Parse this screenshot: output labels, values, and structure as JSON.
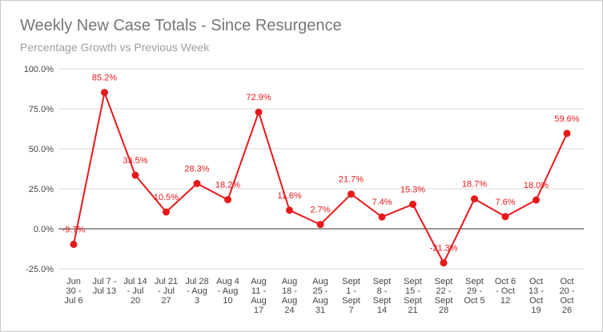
{
  "chart_data": {
    "type": "line",
    "title": "Weekly New Case Totals - Since Resurgence",
    "subtitle": "Percentage Growth vs Previous Week",
    "xlabel": "",
    "ylabel": "",
    "ylim": [
      -25,
      100
    ],
    "yticks": [
      100,
      75,
      50,
      25,
      0,
      -25
    ],
    "ytick_labels": [
      "100.0%",
      "75.0%",
      "50.0%",
      "25.0%",
      "0.0%",
      "-25.0%"
    ],
    "categories": [
      [
        "Jun",
        "30 -",
        "Jul 6"
      ],
      [
        "Jul 7 -",
        "Jul 13"
      ],
      [
        "Jul 14",
        "- Jul",
        "20"
      ],
      [
        "Jul 21",
        "- Jul",
        "27"
      ],
      [
        "Jul 28",
        "- Aug",
        "3"
      ],
      [
        "Aug 4",
        "- Aug",
        "10"
      ],
      [
        "Aug",
        "11 -",
        "Aug",
        "17"
      ],
      [
        "Aug",
        "18 -",
        "Aug",
        "24"
      ],
      [
        "Aug",
        "25 -",
        "Aug",
        "31"
      ],
      [
        "Sept",
        "1 -",
        "Sept",
        "7"
      ],
      [
        "Sept",
        "8 -",
        "Sept",
        "14"
      ],
      [
        "Sept",
        "15 -",
        "Sept",
        "21"
      ],
      [
        "Sept",
        "22 -",
        "Sept",
        "28"
      ],
      [
        "Sept",
        "29 -",
        "Oct 5"
      ],
      [
        "Oct 6",
        "- Oct",
        "12"
      ],
      [
        "Oct",
        "13 -",
        "Oct",
        "19"
      ],
      [
        "Oct",
        "20 -",
        "Oct",
        "26"
      ]
    ],
    "series": [
      {
        "name": "Percentage Growth vs Previous Week",
        "color": "#e8191b",
        "values": [
          -9.7,
          85.2,
          33.5,
          10.5,
          28.3,
          18.2,
          72.9,
          11.6,
          2.7,
          21.7,
          7.4,
          15.3,
          -21.3,
          18.7,
          7.6,
          18.0,
          59.6
        ],
        "data_labels": [
          "-9.7%",
          "85.2%",
          "33.5%",
          "10.5%",
          "28.3%",
          "18.2%",
          "72.9%",
          "11.6%",
          "2.7%",
          "21.7%",
          "7.4%",
          "15.3%",
          "-21.3%",
          "18.7%",
          "7.6%",
          "18.0%",
          "59.6%"
        ]
      }
    ],
    "grid": true,
    "gridline_color": "#d9d9d9",
    "zero_line_color": "#333333"
  }
}
